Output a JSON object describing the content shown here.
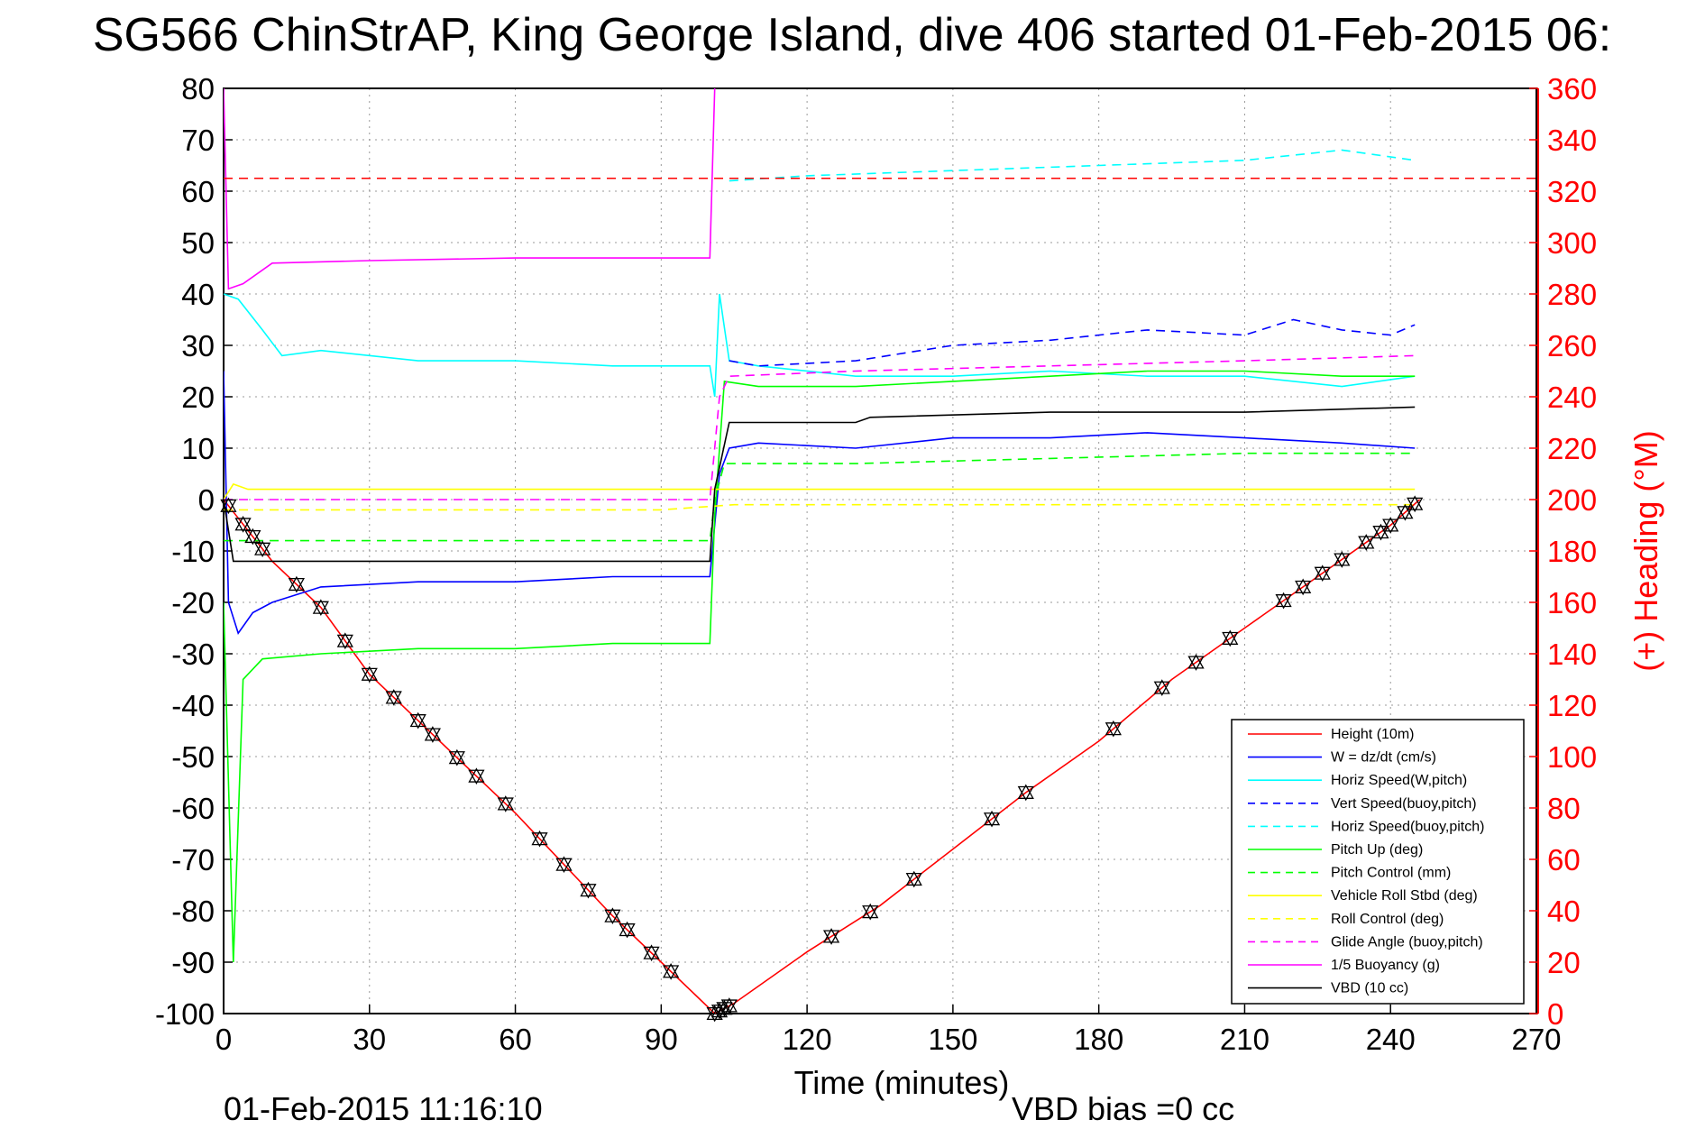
{
  "chart_data": {
    "type": "line",
    "title": "SG566 ChinStrAP, King George Island, dive 406 started 01-Feb-2015 06:",
    "xlabel": "Time (minutes)",
    "ylabel": "",
    "y2label": "(+) Heading (°M)",
    "xlim": [
      0,
      270
    ],
    "ylim": [
      -100,
      80
    ],
    "y2lim": [
      0,
      360
    ],
    "xticks": [
      "0",
      "30",
      "60",
      "90",
      "120",
      "150",
      "180",
      "210",
      "240",
      "270"
    ],
    "yticks": [
      "80",
      "70",
      "60",
      "50",
      "40",
      "30",
      "20",
      "10",
      "0",
      "-10",
      "-20",
      "-30",
      "-40",
      "-50",
      "-60",
      "-70",
      "-80",
      "-90",
      "-100"
    ],
    "y2ticks": [
      "360",
      "340",
      "320",
      "300",
      "280",
      "260",
      "240",
      "220",
      "200",
      "180",
      "160",
      "140",
      "120",
      "100",
      "80",
      "60",
      "40",
      "20",
      "0"
    ],
    "grid": true,
    "legend_position": "bottom-right",
    "footer_left": "01-Feb-2015 11:16:10",
    "footer_right": "VBD bias =0 cc",
    "heading_mean": 325,
    "series": [
      {
        "name": "Height (10m)",
        "color": "#ff0000",
        "style": "solid",
        "x": [
          0,
          10,
          20,
          30,
          40,
          50,
          60,
          70,
          80,
          90,
          101,
          105,
          120,
          135,
          150,
          165,
          180,
          195,
          210,
          225,
          240,
          246
        ],
        "y": [
          0,
          -12,
          -21,
          -34,
          -43,
          -52,
          -61,
          -71,
          -81,
          -90,
          -100,
          -98,
          -88,
          -79,
          -68,
          -57,
          -47,
          -35,
          -25,
          -15,
          -5,
          0
        ]
      },
      {
        "name": "W = dz/dt (cm/s)",
        "color": "#0000ff",
        "style": "solid",
        "x": [
          0,
          1,
          3,
          6,
          10,
          20,
          40,
          60,
          80,
          100,
          102,
          104,
          110,
          130,
          150,
          170,
          190,
          210,
          230,
          245
        ],
        "y": [
          25,
          -20,
          -26,
          -22,
          -20,
          -17,
          -16,
          -16,
          -15,
          -15,
          5,
          10,
          11,
          10,
          12,
          12,
          13,
          12,
          11,
          10
        ]
      },
      {
        "name": "Horiz Speed(W,pitch)",
        "color": "#00ffff",
        "style": "solid",
        "x": [
          0,
          3,
          8,
          12,
          20,
          40,
          60,
          80,
          100,
          101,
          102,
          104,
          110,
          130,
          150,
          170,
          190,
          210,
          230,
          245
        ],
        "y": [
          40,
          39,
          33,
          28,
          29,
          27,
          27,
          26,
          26,
          20,
          40,
          27,
          26,
          24,
          24,
          25,
          24,
          24,
          22,
          24
        ]
      },
      {
        "name": "Vert Speed(buoy,pitch)",
        "color": "#0000ff",
        "style": "dashed",
        "x": [
          104,
          110,
          130,
          150,
          170,
          190,
          210,
          220,
          230,
          240,
          245
        ],
        "y": [
          27,
          26,
          27,
          30,
          31,
          33,
          32,
          35,
          33,
          32,
          34
        ]
      },
      {
        "name": "Horiz Speed(buoy,pitch)",
        "color": "#00ffff",
        "style": "dashed",
        "x": [
          104,
          120,
          150,
          180,
          210,
          230,
          245
        ],
        "y": [
          62,
          63,
          64,
          65,
          66,
          68,
          66
        ]
      },
      {
        "name": "Pitch Up (deg)",
        "color": "#00ff00",
        "style": "solid",
        "x": [
          0,
          2,
          4,
          8,
          20,
          40,
          60,
          80,
          100,
          101,
          103,
          110,
          130,
          150,
          170,
          190,
          210,
          230,
          245
        ],
        "y": [
          -20,
          -90,
          -35,
          -31,
          -30,
          -29,
          -29,
          -28,
          -28,
          -3,
          23,
          22,
          22,
          23,
          24,
          25,
          25,
          24,
          24
        ]
      },
      {
        "name": "Pitch Control (mm)",
        "color": "#00ff00",
        "style": "dashed",
        "x": [
          0,
          3,
          20,
          60,
          100,
          101,
          103,
          130,
          170,
          210,
          245
        ],
        "y": [
          -8,
          -8,
          -8,
          -8,
          -8,
          0,
          7,
          7,
          8,
          9,
          9
        ]
      },
      {
        "name": "Vehicle Roll Stbd (deg)",
        "color": "#ffff00",
        "style": "solid",
        "x": [
          0,
          2,
          5,
          20,
          40,
          60,
          80,
          100,
          110,
          130,
          150,
          170,
          190,
          210,
          220,
          235,
          245
        ],
        "y": [
          0,
          3,
          2,
          2,
          2,
          2,
          2,
          2,
          2,
          2,
          2,
          2,
          2,
          2,
          2,
          2,
          2
        ]
      },
      {
        "name": "Roll Control (deg)",
        "color": "#ffff00",
        "style": "dashed",
        "x": [
          0,
          5,
          30,
          60,
          90,
          105,
          150,
          200,
          245
        ],
        "y": [
          -2,
          -2,
          -2,
          -2,
          -2,
          -1,
          -1,
          -1,
          -1
        ]
      },
      {
        "name": "Glide Angle (buoy,pitch)",
        "color": "#ff00ff",
        "style": "dashed",
        "x": [
          0,
          100,
          102,
          104,
          130,
          170,
          210,
          245
        ],
        "y": [
          0,
          0,
          20,
          24,
          25,
          26,
          27,
          28
        ]
      },
      {
        "name": "1/5 Buoyancy (g)",
        "color": "#ff00ff",
        "style": "solid",
        "x": [
          0,
          1,
          4,
          10,
          30,
          60,
          90,
          100,
          101
        ],
        "y": [
          80,
          41,
          42,
          46,
          46.5,
          47,
          47,
          47,
          80
        ]
      },
      {
        "name": "VBD (10 cc)",
        "color": "#000000",
        "style": "solid",
        "x": [
          0,
          2,
          30,
          60,
          100,
          101,
          104,
          130,
          133,
          170,
          210,
          245
        ],
        "y": [
          0,
          -12,
          -12,
          -12,
          -12,
          2,
          15,
          15,
          16,
          17,
          17,
          18
        ]
      }
    ],
    "markers_triangle_x": [
      1,
      4,
      6,
      8,
      15,
      20,
      25,
      30,
      35,
      40,
      43,
      48,
      52,
      58,
      65,
      70,
      75,
      80,
      83,
      88,
      92,
      101,
      102,
      103,
      104,
      125,
      133,
      142,
      158,
      165,
      183,
      193,
      200,
      207,
      218,
      222,
      226,
      230,
      235,
      238,
      240,
      243,
      245
    ]
  }
}
